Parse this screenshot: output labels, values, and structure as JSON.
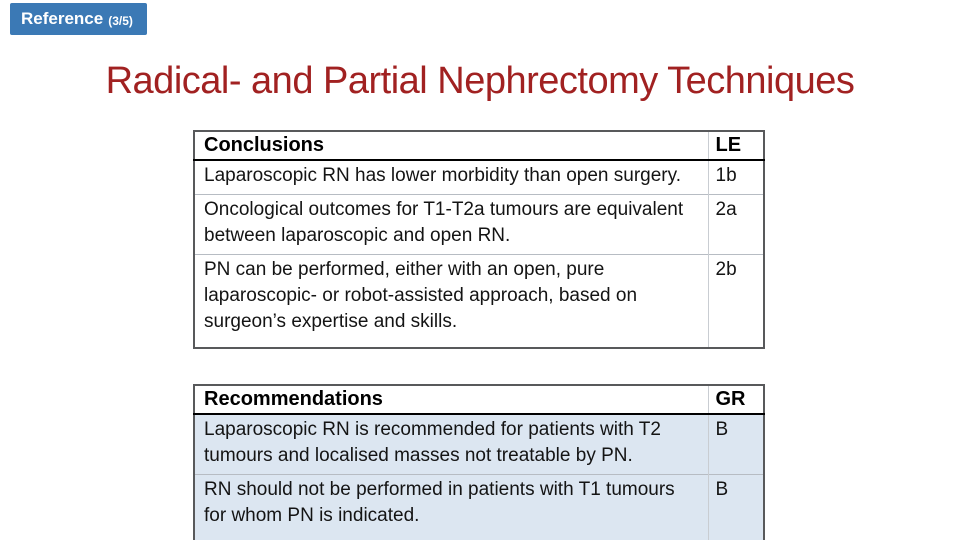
{
  "colors": {
    "badge_bg": "#3b79b5",
    "badge_text": "#ffffff",
    "title": "#a12121",
    "tinted_row": "#dce6f1",
    "table_outer_border": "#58595b"
  },
  "badge": {
    "label": "Reference",
    "count": "(3/5)"
  },
  "title": {
    "text": "Radical- and Partial Nephrectomy Techniques"
  },
  "tables": [
    {
      "header": {
        "label": "Conclusions",
        "grade": "LE"
      },
      "tinted": false,
      "rows": [
        {
          "text": "Laparoscopic RN has lower morbidity than open surgery.",
          "grade": "1b"
        },
        {
          "text": "Oncological outcomes for T1-T2a tumours are equivalent between laparoscopic and open RN.",
          "grade": "2a"
        },
        {
          "text": "PN can be performed, either with an open, pure laparoscopic- or robot-assisted approach, based on surgeon’s expertise and skills.",
          "grade": "2b"
        }
      ]
    },
    {
      "header": {
        "label": "Recommendations",
        "grade": "GR"
      },
      "tinted": true,
      "rows": [
        {
          "text": "Laparoscopic RN is recommended for patients with T2 tumours and localised masses not treatable by PN.",
          "grade": "B"
        },
        {
          "text": "RN should not be performed in patients with T1 tumours for whom PN is indicated.",
          "grade": "B"
        }
      ]
    }
  ]
}
